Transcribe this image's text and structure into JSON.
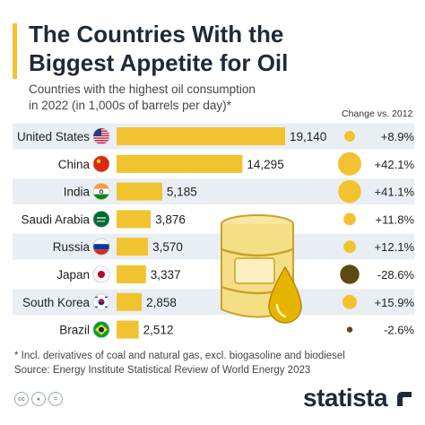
{
  "header": {
    "title_line1": "The Countries With the",
    "title_line2": "Biggest Appetite for Oil",
    "subtitle_line1": "Countries with the highest oil consumption",
    "subtitle_line2": "in 2022 (in 1,000s of barrels per day)*",
    "change_header": "Change vs. 2012"
  },
  "chart_data": {
    "type": "bar",
    "orientation": "horizontal",
    "categories": [
      "United States",
      "China",
      "India",
      "Saudi Arabia",
      "Russia",
      "Japan",
      "South Korea",
      "Brazil"
    ],
    "values": [
      19140,
      14295,
      5185,
      3876,
      3570,
      3337,
      2858,
      2512
    ],
    "value_labels": [
      "19,140",
      "14,295",
      "5,185",
      "3,876",
      "3,570",
      "3,337",
      "2,858",
      "2,512"
    ],
    "change_vs_2012": [
      8.9,
      42.1,
      41.1,
      11.8,
      12.1,
      -28.6,
      15.9,
      -2.6
    ],
    "change_labels": [
      "+8.9%",
      "+42.1%",
      "+41.1%",
      "+11.8%",
      "+12.1%",
      "-28.6%",
      "+15.9%",
      "-2.6%"
    ],
    "flags": [
      "flag-us-icon",
      "flag-china-icon",
      "flag-india-icon",
      "flag-saudi-arabia-icon",
      "flag-russia-icon",
      "flag-japan-icon",
      "flag-south-korea-icon",
      "flag-brazil-icon"
    ],
    "bar_color": "#f2c331",
    "positive_change_color": "#f2c331",
    "negative_change_color": "#5b4a12",
    "row_band_color": "#e9eef4",
    "xlim": [
      0,
      19140
    ]
  },
  "footer": {
    "footnote": "* Incl. derivatives of coal and natural gas, excl. biogasoline and biodiesel",
    "source": "Source: Energy Institute Statistical Review of World Energy 2023",
    "logo": "statista"
  },
  "decor": {
    "illustration": "oil-barrel-icon"
  }
}
